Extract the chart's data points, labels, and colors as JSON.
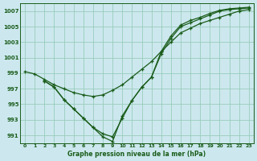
{
  "title": "Graphe pression niveau de la mer (hPa)",
  "bg": "#cce8ee",
  "grid_color": "#99ccbb",
  "line_color": "#1a5c1a",
  "xlim": [
    -0.5,
    23.5
  ],
  "ylim": [
    990.0,
    1008.0
  ],
  "yticks": [
    991,
    993,
    995,
    997,
    999,
    1001,
    1003,
    1005,
    1007
  ],
  "xticks": [
    0,
    1,
    2,
    3,
    4,
    5,
    6,
    7,
    8,
    9,
    10,
    11,
    12,
    13,
    14,
    15,
    16,
    17,
    18,
    19,
    20,
    21,
    22,
    23
  ],
  "s1_x": [
    0,
    1,
    2,
    3,
    4,
    5,
    6,
    7,
    8,
    9,
    10,
    11,
    12,
    13,
    14,
    15,
    16,
    17,
    18,
    19,
    20,
    21,
    22,
    23
  ],
  "s1_y": [
    999.2,
    998.9,
    998.2,
    997.5,
    997.0,
    996.5,
    996.2,
    996.0,
    996.2,
    996.8,
    997.5,
    998.5,
    999.5,
    1000.5,
    1001.8,
    1003.0,
    1004.2,
    1004.8,
    1005.4,
    1005.8,
    1006.2,
    1006.6,
    1007.0,
    1007.2
  ],
  "s2_x": [
    2,
    3,
    4,
    5,
    6,
    7,
    8,
    9,
    10,
    11,
    12,
    13,
    14,
    15,
    16,
    17,
    18,
    19,
    20,
    21,
    22,
    23
  ],
  "s2_y": [
    998.0,
    997.2,
    995.6,
    994.4,
    993.2,
    992.0,
    991.2,
    990.8,
    993.2,
    995.5,
    997.2,
    998.5,
    1001.5,
    1003.5,
    1005.0,
    1005.5,
    1006.0,
    1006.5,
    1007.0,
    1007.2,
    1007.3,
    1007.4
  ],
  "s3_x": [
    2,
    3,
    4,
    5,
    6,
    7,
    8,
    9,
    10,
    11,
    12,
    13,
    14,
    15,
    16,
    17,
    18,
    19,
    20,
    21,
    22,
    23
  ],
  "s3_y": [
    998.0,
    997.2,
    995.6,
    994.4,
    993.2,
    992.0,
    990.8,
    990.2,
    993.5,
    995.5,
    997.2,
    998.5,
    1001.8,
    1003.8,
    1005.2,
    1005.8,
    1006.2,
    1006.7,
    1007.1,
    1007.3,
    1007.4,
    1007.5
  ]
}
